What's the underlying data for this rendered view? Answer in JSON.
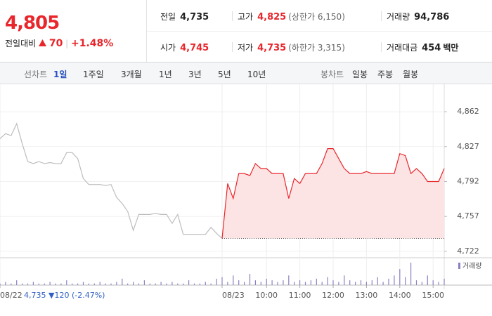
{
  "header": {
    "price": "4,805",
    "change_label": "전일대비",
    "change": "70",
    "change_rate": "+1.48%"
  },
  "stats": [
    {
      "label": "전일",
      "value": "4,735",
      "note": ""
    },
    {
      "label": "고가",
      "value": "4,825",
      "note": "(상한가 6,150)"
    },
    {
      "label": "거래량",
      "value": "94,786",
      "note": ""
    },
    {
      "label": "시가",
      "value": "4,745",
      "note": ""
    },
    {
      "label": "저가",
      "value": "4,735",
      "note": "(하한가 3,315)"
    },
    {
      "label": "거래대금",
      "value": "454",
      "note": "백만"
    }
  ],
  "tabs": {
    "line_label": "선차트",
    "line_items": [
      "1일",
      "1주일",
      "3개월",
      "1년",
      "3년",
      "5년",
      "10년"
    ],
    "active": 0,
    "candle_label": "봉차트",
    "candle_items": [
      "일봉",
      "주봉",
      "월봉"
    ]
  },
  "chart_data": {
    "type": "line",
    "prev_caption": "4,735 ▼120 (-2.47%)",
    "volume_label": "거래량",
    "xlim": [
      0,
      80
    ],
    "xticks": [
      {
        "value": 0,
        "label": "08/22"
      },
      {
        "value": 40,
        "label": "08/23"
      },
      {
        "value": 48,
        "label": "10:00"
      },
      {
        "value": 54,
        "label": "11:00"
      },
      {
        "value": 60,
        "label": "12:00"
      },
      {
        "value": 66,
        "label": "13:00"
      },
      {
        "value": 72,
        "label": "14:00"
      },
      {
        "value": 78,
        "label": "15:00"
      }
    ],
    "ylim": [
      4717,
      4886
    ],
    "yticks": [
      {
        "value": 4862,
        "label": "4,862"
      },
      {
        "value": 4827,
        "label": "4,827"
      },
      {
        "value": 4792,
        "label": "4,792"
      },
      {
        "value": 4757,
        "label": "4,757"
      },
      {
        "value": 4722,
        "label": "4,722"
      }
    ],
    "grid": true,
    "baseline": 4735,
    "series": [
      {
        "color": "#bdbdbd",
        "values": [
          4835,
          4840,
          4838,
          4850,
          4830,
          4812,
          4810,
          4812,
          4810,
          4811,
          4810,
          4810,
          4821,
          4821,
          4815,
          4795,
          4789,
          4789,
          4789,
          4788,
          4789,
          4776,
          4770,
          4762,
          4743,
          4759,
          4759,
          4759,
          4760,
          4759,
          4759,
          4750,
          4759,
          4739,
          4739,
          4739,
          4739,
          4739,
          4746,
          4740,
          4735,
          null,
          null,
          null,
          null,
          null,
          null,
          null,
          null,
          null,
          null,
          null,
          null,
          null,
          null,
          null,
          null,
          null,
          null,
          null,
          null,
          null,
          null,
          null,
          null,
          null,
          null,
          null,
          null,
          null,
          null,
          null,
          null,
          null,
          null,
          null,
          null,
          null,
          null,
          null,
          null
        ]
      },
      {
        "color": "#e8262b",
        "area_color": "#fde4e4",
        "values": [
          null,
          null,
          null,
          null,
          null,
          null,
          null,
          null,
          null,
          null,
          null,
          null,
          null,
          null,
          null,
          null,
          null,
          null,
          null,
          null,
          null,
          null,
          null,
          null,
          null,
          null,
          null,
          null,
          null,
          null,
          null,
          null,
          null,
          null,
          null,
          null,
          null,
          null,
          null,
          null,
          4735,
          4790,
          4775,
          4800,
          4800,
          4798,
          4810,
          4805,
          4805,
          4800,
          4800,
          4800,
          4775,
          4795,
          4790,
          4800,
          4800,
          4800,
          4810,
          4825,
          4825,
          4815,
          4805,
          4800,
          4800,
          4800,
          4802,
          4800,
          4800,
          4800,
          4800,
          4800,
          4820,
          4818,
          4800,
          4805,
          4800,
          4792,
          4792,
          4792,
          4805
        ]
      }
    ],
    "volume": {
      "color": "#8b80c4",
      "values": [
        1,
        2,
        1,
        3,
        1,
        1,
        2,
        1,
        1,
        2,
        1,
        1,
        3,
        1,
        1,
        2,
        1,
        1,
        2,
        1,
        1,
        2,
        4,
        1,
        2,
        1,
        3,
        1,
        1,
        2,
        1,
        2,
        1,
        1,
        3,
        1,
        1,
        2,
        1,
        4,
        5,
        2,
        6,
        3,
        2,
        7,
        3,
        2,
        4,
        3,
        2,
        3,
        6,
        2,
        3,
        2,
        3,
        4,
        2,
        5,
        3,
        2,
        6,
        3,
        2,
        3,
        2,
        3,
        5,
        2,
        4,
        6,
        10,
        5,
        14,
        3,
        2,
        6,
        3,
        2,
        4
      ]
    }
  }
}
